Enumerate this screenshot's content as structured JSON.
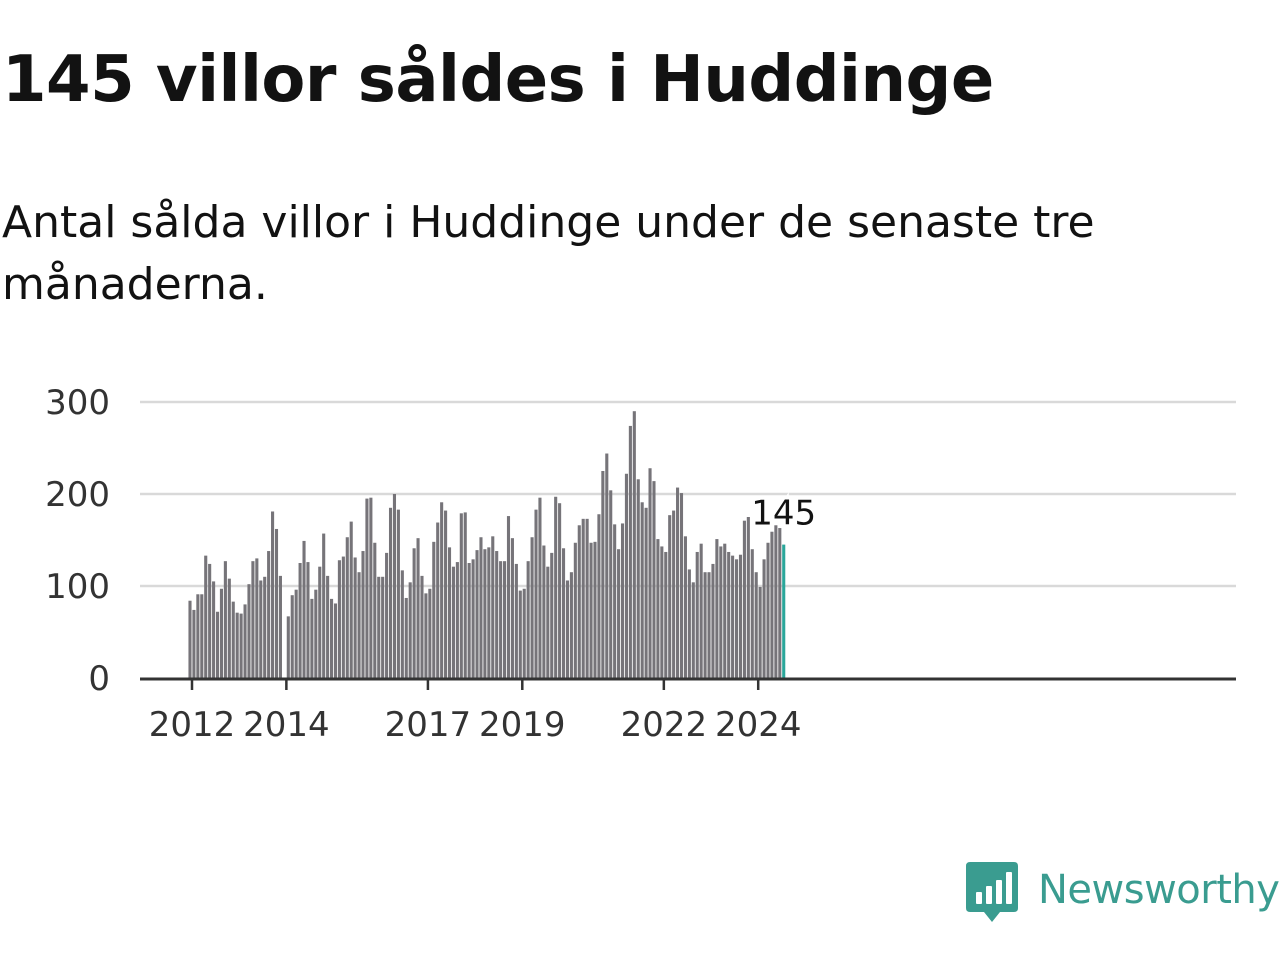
{
  "title": "145 villor såldes i Huddinge",
  "subtitle": "Antal sålda villor i Huddinge under de senaste tre månaderna.",
  "brand": {
    "name": "Newsworthy",
    "icon": "bar-chart-speech-bubble-icon",
    "color": "#3a9c90"
  },
  "colors": {
    "bar": "#767479",
    "highlight": "#2aa69a",
    "grid": "#d9d9d9",
    "axis": "#333333"
  },
  "chart_data": {
    "type": "bar",
    "title": "Antal sålda villor i Huddinge",
    "xlabel": "",
    "ylabel": "",
    "ylim": [
      0,
      300
    ],
    "yticks": [
      0,
      100,
      200,
      300
    ],
    "grid": true,
    "start": "2012-01",
    "xticks": [
      {
        "label": "2012",
        "year": 2012
      },
      {
        "label": "2014",
        "year": 2014
      },
      {
        "label": "2017",
        "year": 2017
      },
      {
        "label": "2019",
        "year": 2019
      },
      {
        "label": "2022",
        "year": 2022
      },
      {
        "label": "2024",
        "year": 2024
      }
    ],
    "highlight": {
      "label": "145",
      "value": 145,
      "period": "2024-07"
    },
    "values": [
      84,
      74,
      91,
      91,
      133,
      124,
      105,
      72,
      97,
      127,
      108,
      83,
      71,
      70,
      80,
      102,
      127,
      130,
      106,
      110,
      138,
      181,
      162,
      111,
      0,
      67,
      90,
      96,
      125,
      149,
      126,
      86,
      96,
      121,
      157,
      111,
      86,
      81,
      128,
      132,
      153,
      170,
      131,
      115,
      138,
      195,
      196,
      147,
      110,
      110,
      136,
      185,
      200,
      183,
      117,
      87,
      104,
      141,
      152,
      111,
      92,
      97,
      148,
      169,
      191,
      182,
      142,
      121,
      126,
      179,
      180,
      125,
      129,
      139,
      153,
      140,
      142,
      154,
      138,
      127,
      127,
      176,
      152,
      124,
      95,
      97,
      127,
      153,
      183,
      196,
      144,
      121,
      136,
      197,
      190,
      141,
      106,
      115,
      147,
      166,
      173,
      173,
      147,
      148,
      178,
      225,
      244,
      204,
      167,
      140,
      168,
      222,
      274,
      290,
      216,
      191,
      185,
      228,
      214,
      151,
      143,
      137,
      177,
      182,
      207,
      201,
      154,
      118,
      104,
      137,
      146,
      115,
      115,
      124,
      151,
      143,
      146,
      137,
      133,
      129,
      134,
      171,
      175,
      140,
      115,
      99,
      129,
      147,
      159,
      166,
      163,
      145
    ]
  }
}
